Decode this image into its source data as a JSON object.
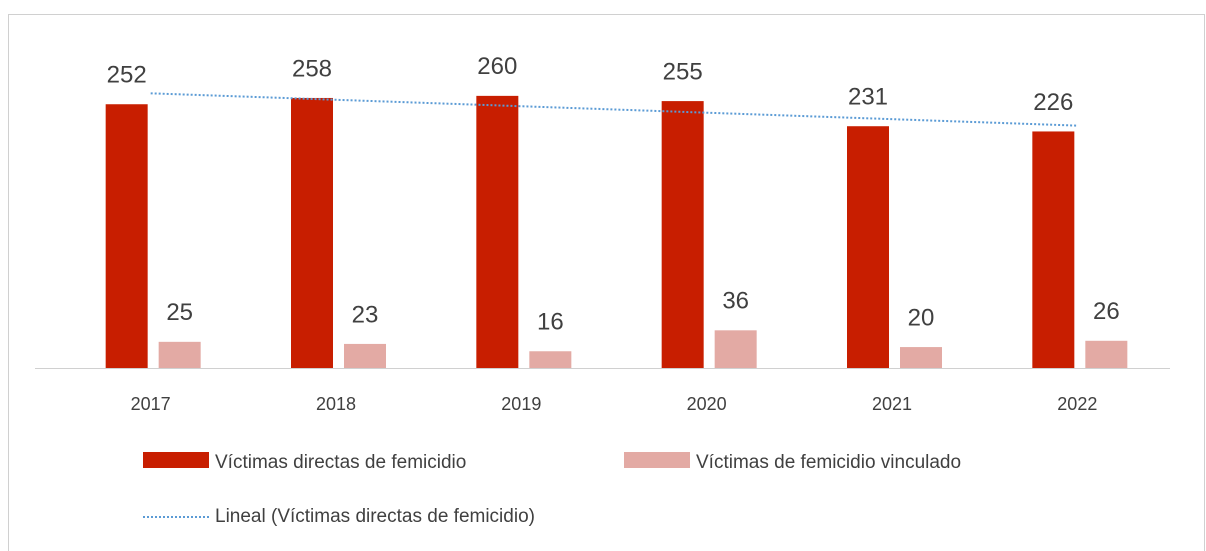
{
  "chart_data": {
    "type": "bar",
    "categories": [
      "2017",
      "2018",
      "2019",
      "2020",
      "2021",
      "2022"
    ],
    "series": [
      {
        "name": "Víctimas directas de femicidio",
        "color": "#c81e00",
        "values": [
          252,
          258,
          260,
          255,
          231,
          226
        ]
      },
      {
        "name": "Víctimas de femicidio vinculado",
        "color": "#e3aaa4",
        "values": [
          25,
          23,
          16,
          36,
          20,
          26
        ]
      }
    ],
    "trendline": {
      "name": "Lineal (Víctimas directas de femicidio)",
      "color": "#5b9bd5",
      "kind": "linear"
    },
    "ylim": [
      0,
      300
    ],
    "grid": false
  }
}
